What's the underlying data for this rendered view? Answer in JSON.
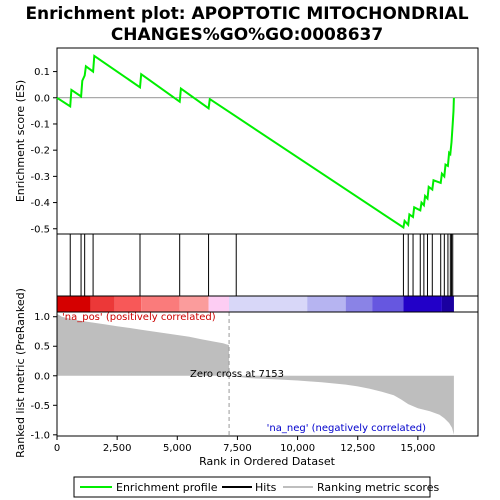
{
  "chart_data": {
    "type": "line",
    "title_line1": "Enrichment plot: APOPTOTIC MITOCHONDRIAL",
    "title_line2": "CHANGES%GO%GO:0008637",
    "xlabel": "Rank in Ordered Dataset",
    "xlim": [
      0,
      17500
    ],
    "x_ticks": [
      0,
      2500,
      5000,
      7500,
      10000,
      12500,
      15000
    ],
    "x_tick_labels": [
      "0",
      "2,500",
      "5,000",
      "7,500",
      "10,000",
      "12,500",
      "15,000"
    ],
    "es_panel": {
      "ylabel": "Enrichment score (ES)",
      "ylim": [
        -0.52,
        0.19
      ],
      "y_ticks": [
        0.1,
        0.0,
        -0.1,
        -0.2,
        -0.3,
        -0.4,
        -0.5
      ],
      "y_tick_labels": [
        "0.1",
        "0.0",
        "-0.1",
        "-0.2",
        "-0.3",
        "-0.4",
        "-0.5"
      ],
      "color": "#00ee00",
      "x": [
        0,
        550,
        600,
        1000,
        1050,
        1150,
        1200,
        1500,
        1550,
        3450,
        3500,
        5100,
        5150,
        6300,
        6350,
        7450,
        14400,
        14450,
        14600,
        14650,
        14800,
        14850,
        15100,
        15150,
        15250,
        15300,
        15400,
        15450,
        15600,
        15650,
        15950,
        16000,
        16100,
        16150,
        16250,
        16300,
        16350,
        16400,
        16450,
        16480,
        16500
      ],
      "y": [
        0.0,
        -0.033,
        0.03,
        0.005,
        0.065,
        0.085,
        0.12,
        0.1,
        0.16,
        0.04,
        0.09,
        -0.015,
        0.035,
        -0.04,
        -0.005,
        -0.072,
        -0.495,
        -0.47,
        -0.485,
        -0.445,
        -0.455,
        -0.418,
        -0.43,
        -0.4,
        -0.41,
        -0.375,
        -0.385,
        -0.34,
        -0.35,
        -0.315,
        -0.325,
        -0.29,
        -0.3,
        -0.255,
        -0.26,
        -0.21,
        -0.215,
        -0.17,
        -0.1,
        -0.05,
        0.0
      ]
    },
    "hits": [
      550,
      1000,
      1150,
      1500,
      3450,
      5100,
      6300,
      7450,
      14400,
      14600,
      14800,
      15100,
      15250,
      15400,
      15600,
      15950,
      16100,
      16250,
      16350,
      16400,
      16450
    ],
    "colorbar": [
      {
        "start": 0,
        "end": 1400,
        "color": "#d50000"
      },
      {
        "start": 1400,
        "end": 2400,
        "color": "#ec3838"
      },
      {
        "start": 2400,
        "end": 3500,
        "color": "#f85858"
      },
      {
        "start": 3500,
        "end": 5100,
        "color": "#fa7b7b"
      },
      {
        "start": 5100,
        "end": 6300,
        "color": "#fb9c9c"
      },
      {
        "start": 6300,
        "end": 7150,
        "color": "#fdcdf3"
      },
      {
        "start": 7150,
        "end": 10400,
        "color": "#d8d7f8"
      },
      {
        "start": 10400,
        "end": 12000,
        "color": "#b6b4f1"
      },
      {
        "start": 12000,
        "end": 13100,
        "color": "#8a83e6"
      },
      {
        "start": 13100,
        "end": 14400,
        "color": "#6657e0"
      },
      {
        "start": 14400,
        "end": 16000,
        "color": "#2200c8"
      },
      {
        "start": 16000,
        "end": 16500,
        "color": "#1a00a0"
      }
    ],
    "rank_panel": {
      "ylabel": "Ranked list metric (PreRanked)",
      "ylim": [
        -1.02,
        1.08
      ],
      "y_ticks": [
        1.0,
        0.5,
        0.0,
        -0.5,
        -1.0
      ],
      "y_tick_labels": [
        "1.0",
        "0.5",
        "0.0",
        "-0.5",
        "-1.0"
      ],
      "fill_color": "#bebebe",
      "x": [
        0,
        200,
        600,
        1000,
        1500,
        2000,
        2500,
        3000,
        3500,
        4000,
        4500,
        5000,
        5500,
        6000,
        6500,
        6900,
        7150,
        7153,
        7600,
        8000,
        9000,
        10000,
        11000,
        12000,
        12500,
        13000,
        13500,
        14000,
        14300,
        14600,
        15000,
        15500,
        15900,
        16100,
        16300,
        16420,
        16500
      ],
      "y": [
        1.05,
        1.0,
        0.96,
        0.93,
        0.9,
        0.87,
        0.84,
        0.81,
        0.78,
        0.75,
        0.72,
        0.69,
        0.66,
        0.62,
        0.58,
        0.55,
        0.52,
        0.0,
        -0.02,
        -0.04,
        -0.06,
        -0.08,
        -0.11,
        -0.15,
        -0.18,
        -0.22,
        -0.27,
        -0.33,
        -0.4,
        -0.48,
        -0.55,
        -0.6,
        -0.66,
        -0.72,
        -0.8,
        -0.88,
        -1.0
      ]
    },
    "zero_cross": 7153,
    "zero_cross_label": "Zero cross at 7153",
    "pos_label": "'na_pos' (positively correlated)",
    "neg_label": "'na_neg' (negatively correlated)",
    "legend": [
      "Enrichment profile",
      "Hits",
      "Ranking metric scores"
    ],
    "legend_placement": "bottom",
    "grid": false
  }
}
